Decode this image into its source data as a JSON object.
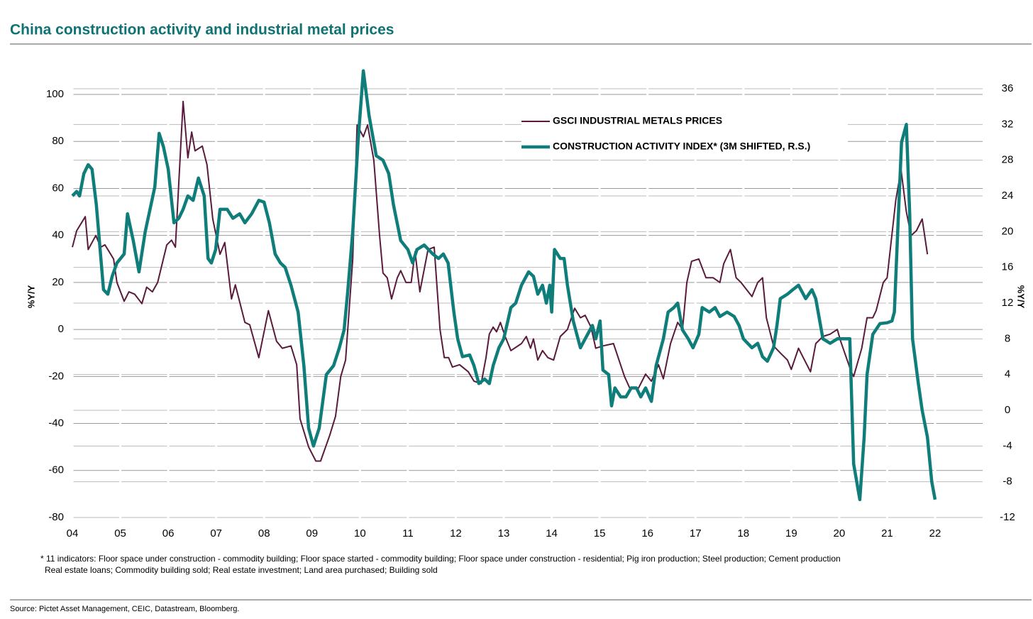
{
  "chart_data": {
    "type": "line",
    "title": "China construction activity and industrial metal prices",
    "ylabel": "%Y/Y",
    "y2label": "%Y/Y",
    "xlim": [
      2004,
      2022
    ],
    "xticks": [
      {
        "value": 2004,
        "label": "04"
      },
      {
        "value": 2005,
        "label": "05"
      },
      {
        "value": 2006,
        "label": "06"
      },
      {
        "value": 2007,
        "label": "07"
      },
      {
        "value": 2008,
        "label": "08"
      },
      {
        "value": 2009,
        "label": "09"
      },
      {
        "value": 2010,
        "label": "10"
      },
      {
        "value": 2011,
        "label": "11"
      },
      {
        "value": 2012,
        "label": "12"
      },
      {
        "value": 2013,
        "label": "13"
      },
      {
        "value": 2014,
        "label": "14"
      },
      {
        "value": 2015,
        "label": "15"
      },
      {
        "value": 2016,
        "label": "16"
      },
      {
        "value": 2017,
        "label": "17"
      },
      {
        "value": 2018,
        "label": "18"
      },
      {
        "value": 2019,
        "label": "19"
      },
      {
        "value": 2020,
        "label": "20"
      },
      {
        "value": 2021,
        "label": "21"
      },
      {
        "value": 2022,
        "label": "22"
      }
    ],
    "ylim": [
      -80,
      100
    ],
    "yticks": [
      -80,
      -60,
      -40,
      -20,
      0,
      20,
      40,
      60,
      80,
      100
    ],
    "y2lim": [
      -12,
      36
    ],
    "y2ticks": [
      -12,
      -8,
      -4,
      0,
      4,
      8,
      12,
      16,
      20,
      24,
      28,
      32,
      36
    ],
    "grid": true,
    "series": [
      {
        "name": "GSCI INDUSTRIAL METALS PRICES",
        "color": "#5a1a3c",
        "axis": "y",
        "x": [
          2004.0,
          2004.09,
          2004.27,
          2004.33,
          2004.49,
          2004.59,
          2004.68,
          2004.86,
          2004.93,
          2005.08,
          2005.18,
          2005.3,
          2005.45,
          2005.55,
          2005.67,
          2005.78,
          2005.97,
          2006.07,
          2006.15,
          2006.31,
          2006.41,
          2006.49,
          2006.56,
          2006.71,
          2006.81,
          2006.93,
          2007.08,
          2007.18,
          2007.32,
          2007.4,
          2007.6,
          2007.7,
          2007.89,
          2008.09,
          2008.26,
          2008.38,
          2008.56,
          2008.68,
          2008.75,
          2008.93,
          2009.08,
          2009.18,
          2009.37,
          2009.49,
          2009.6,
          2009.7,
          2009.85,
          2009.94,
          2010.07,
          2010.16,
          2010.29,
          2010.41,
          2010.48,
          2010.57,
          2010.66,
          2010.78,
          2010.85,
          2010.96,
          2011.07,
          2011.15,
          2011.25,
          2011.42,
          2011.55,
          2011.67,
          2011.76,
          2011.85,
          2011.93,
          2012.08,
          2012.26,
          2012.38,
          2012.53,
          2012.63,
          2012.7,
          2012.78,
          2012.85,
          2012.93,
          2013.03,
          2013.15,
          2013.37,
          2013.47,
          2013.56,
          2013.62,
          2013.71,
          2013.81,
          2013.92,
          2014.04,
          2014.18,
          2014.33,
          2014.48,
          2014.6,
          2014.7,
          2014.82,
          2014.92,
          2015.07,
          2015.29,
          2015.52,
          2015.63,
          2015.81,
          2015.96,
          2016.08,
          2016.23,
          2016.33,
          2016.48,
          2016.63,
          2016.73,
          2016.82,
          2016.92,
          2017.07,
          2017.22,
          2017.37,
          2017.51,
          2017.59,
          2017.73,
          2017.85,
          2017.95,
          2018.18,
          2018.3,
          2018.4,
          2018.48,
          2018.63,
          2018.77,
          2018.92,
          2019.0,
          2019.15,
          2019.25,
          2019.4,
          2019.51,
          2019.66,
          2019.81,
          2019.96,
          2020.03,
          2020.25,
          2020.3,
          2020.47,
          2020.58,
          2020.7,
          2020.77,
          2020.92,
          2021.0,
          2021.07,
          2021.18,
          2021.29,
          2021.4,
          2021.5,
          2021.61,
          2021.73,
          2021.84
        ],
        "values": [
          35,
          42,
          48,
          34,
          40,
          35,
          36,
          30,
          20,
          12,
          16,
          15,
          11,
          18,
          16,
          20,
          36,
          38,
          35,
          97,
          73,
          84,
          76,
          78,
          70,
          47,
          32,
          37,
          13,
          19,
          3,
          2,
          -12,
          8,
          -5,
          -8,
          -7,
          -15,
          -38,
          -50,
          -56,
          -56,
          -45,
          -37,
          -20,
          -13,
          30,
          87,
          82,
          87,
          72,
          40,
          24,
          22,
          13,
          22,
          25,
          20,
          20,
          33,
          16,
          34,
          35,
          0,
          -12,
          -12,
          -16,
          -15,
          -18,
          -22,
          -23,
          -12,
          -2,
          1,
          -1,
          3,
          -3,
          -9,
          -6,
          -3,
          -8,
          -4,
          -13,
          -9,
          -12,
          -13,
          -3,
          0,
          9,
          5,
          6,
          1,
          -8,
          -7,
          -6,
          -20,
          -25,
          -25,
          -19,
          -22,
          -15,
          -21,
          -6,
          3,
          0,
          20,
          29,
          30,
          22,
          22,
          20,
          28,
          34,
          22,
          20,
          14,
          20,
          22,
          5,
          -7,
          -10,
          -13,
          -17,
          -8,
          -12,
          -18,
          -6,
          -3,
          -2,
          0,
          -5,
          -18,
          -20,
          -8,
          5,
          5,
          8,
          20,
          22,
          35,
          55,
          68,
          50,
          40,
          42,
          47,
          32
        ]
      },
      {
        "name": "CONSTRUCTION ACTIVITY INDEX* (3M SHIFTED, R.S.)",
        "color": "#0f7d7a",
        "axis": "y2",
        "x": [
          2004.0,
          2004.09,
          2004.15,
          2004.24,
          2004.33,
          2004.41,
          2004.5,
          2004.65,
          2004.74,
          2004.83,
          2004.93,
          2005.08,
          2005.15,
          2005.27,
          2005.39,
          2005.52,
          2005.6,
          2005.72,
          2005.81,
          2005.9,
          2006.0,
          2006.12,
          2006.22,
          2006.31,
          2006.41,
          2006.52,
          2006.63,
          2006.75,
          2006.83,
          2006.9,
          2006.99,
          2007.08,
          2007.23,
          2007.35,
          2007.49,
          2007.6,
          2007.74,
          2007.89,
          2008.0,
          2008.11,
          2008.23,
          2008.34,
          2008.44,
          2008.56,
          2008.71,
          2008.83,
          2008.93,
          2009.03,
          2009.15,
          2009.3,
          2009.45,
          2009.57,
          2009.67,
          2009.74,
          2009.85,
          2009.96,
          2010.07,
          2010.19,
          2010.34,
          2010.48,
          2010.6,
          2010.7,
          2010.85,
          2011.0,
          2011.1,
          2011.19,
          2011.34,
          2011.52,
          2011.64,
          2011.74,
          2011.84,
          2011.96,
          2012.04,
          2012.14,
          2012.29,
          2012.38,
          2012.48,
          2012.6,
          2012.7,
          2012.78,
          2012.9,
          2013.0,
          2013.15,
          2013.25,
          2013.37,
          2013.52,
          2013.62,
          2013.71,
          2013.81,
          2013.89,
          2013.96,
          2014.0,
          2014.06,
          2014.18,
          2014.26,
          2014.33,
          2014.45,
          2014.6,
          2014.7,
          2014.85,
          2014.92,
          2015.01,
          2015.07,
          2015.19,
          2015.25,
          2015.32,
          2015.44,
          2015.55,
          2015.66,
          2015.77,
          2015.86,
          2015.96,
          2016.08,
          2016.18,
          2016.33,
          2016.43,
          2016.55,
          2016.63,
          2016.73,
          2016.85,
          2016.95,
          2017.07,
          2017.14,
          2017.29,
          2017.41,
          2017.51,
          2017.66,
          2017.81,
          2017.91,
          2018.0,
          2018.18,
          2018.3,
          2018.4,
          2018.5,
          2018.63,
          2018.7,
          2018.77,
          2018.92,
          2019.03,
          2019.15,
          2019.3,
          2019.43,
          2019.51,
          2019.66,
          2019.81,
          2019.96,
          2020.1,
          2020.22,
          2020.3,
          2020.43,
          2020.52,
          2020.58,
          2020.7,
          2020.85,
          2021.0,
          2021.1,
          2021.15,
          2021.22,
          2021.3,
          2021.4,
          2021.47,
          2021.53,
          2021.65,
          2021.73,
          2021.84,
          2021.93,
          2022.0
        ],
        "values": [
          24,
          24.5,
          24,
          26.5,
          27.5,
          27,
          23,
          13.5,
          13,
          15,
          16.5,
          17.5,
          22,
          19,
          15.5,
          20,
          22,
          25,
          31,
          29.5,
          27,
          21,
          21.5,
          22.5,
          24,
          23.5,
          26,
          24,
          17,
          16.5,
          18,
          22.5,
          22.5,
          21.5,
          22,
          21,
          22,
          23.5,
          23.3,
          21,
          17.5,
          16.5,
          16,
          14,
          11,
          5,
          -2,
          -4,
          -2,
          4,
          5,
          7,
          9,
          13,
          20,
          30,
          38,
          33,
          28.5,
          28,
          26.5,
          23,
          19,
          18,
          16.5,
          18,
          18.5,
          17.5,
          17,
          17.5,
          16.5,
          11,
          8,
          6,
          6.2,
          5,
          3,
          3.5,
          3,
          5,
          7,
          8,
          11.5,
          12,
          14,
          15.5,
          15,
          13,
          14,
          12,
          14,
          11,
          18,
          17,
          17,
          14,
          10,
          7,
          8,
          9.5,
          8,
          10,
          4.5,
          4,
          0.5,
          2.5,
          1.5,
          1.5,
          2.5,
          2.5,
          1.5,
          2.5,
          1,
          5,
          8,
          11,
          11.5,
          12,
          9,
          8,
          7,
          8.5,
          11.5,
          11,
          11.5,
          10.5,
          11,
          10.5,
          9.5,
          8,
          7,
          7.5,
          6,
          5.5,
          7,
          9.5,
          12.5,
          13,
          13.5,
          14,
          12.5,
          13.5,
          12.5,
          8,
          7.5,
          8,
          8,
          8,
          -6,
          -10,
          -3,
          4,
          8.5,
          9.7,
          9.8,
          10,
          11,
          20,
          30,
          32,
          22,
          8,
          3,
          0,
          -3,
          -8,
          -10
        ]
      }
    ],
    "footnote": [
      "* 11 indicators: Floor space under  construction - commodity building; Floor space started - commodity building; Floor  space under  construction - residential; Pig iron production; Steel production; Cement  production",
      "Real estate loans; Commodity building sold; Real estate investment; Land area purchased;   Building sold"
    ],
    "source": "Source: Pictet Asset Management, CEIC, Datastream, Bloomberg."
  }
}
